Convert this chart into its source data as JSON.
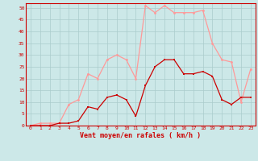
{
  "x": [
    0,
    1,
    2,
    3,
    4,
    5,
    6,
    7,
    8,
    9,
    10,
    11,
    12,
    13,
    14,
    15,
    16,
    17,
    18,
    19,
    20,
    21,
    22,
    23
  ],
  "vent_moyen": [
    0,
    0,
    0,
    1,
    1,
    2,
    8,
    7,
    12,
    13,
    11,
    4,
    17,
    25,
    28,
    28,
    22,
    22,
    23,
    21,
    11,
    9,
    12,
    12
  ],
  "rafales": [
    0,
    1,
    1,
    1,
    9,
    11,
    22,
    20,
    28,
    30,
    28,
    20,
    51,
    48,
    51,
    48,
    48,
    48,
    49,
    35,
    28,
    27,
    10,
    24
  ],
  "bg_color": "#cce8e8",
  "grid_color": "#aacccc",
  "line_moyen_color": "#cc0000",
  "line_rafales_color": "#ff9999",
  "xlabel": "Vent moyen/en rafales ( km/h )",
  "yticks": [
    0,
    5,
    10,
    15,
    20,
    25,
    30,
    35,
    40,
    45,
    50
  ],
  "ylim": [
    0,
    52
  ],
  "xlim": [
    -0.5,
    23.5
  ]
}
